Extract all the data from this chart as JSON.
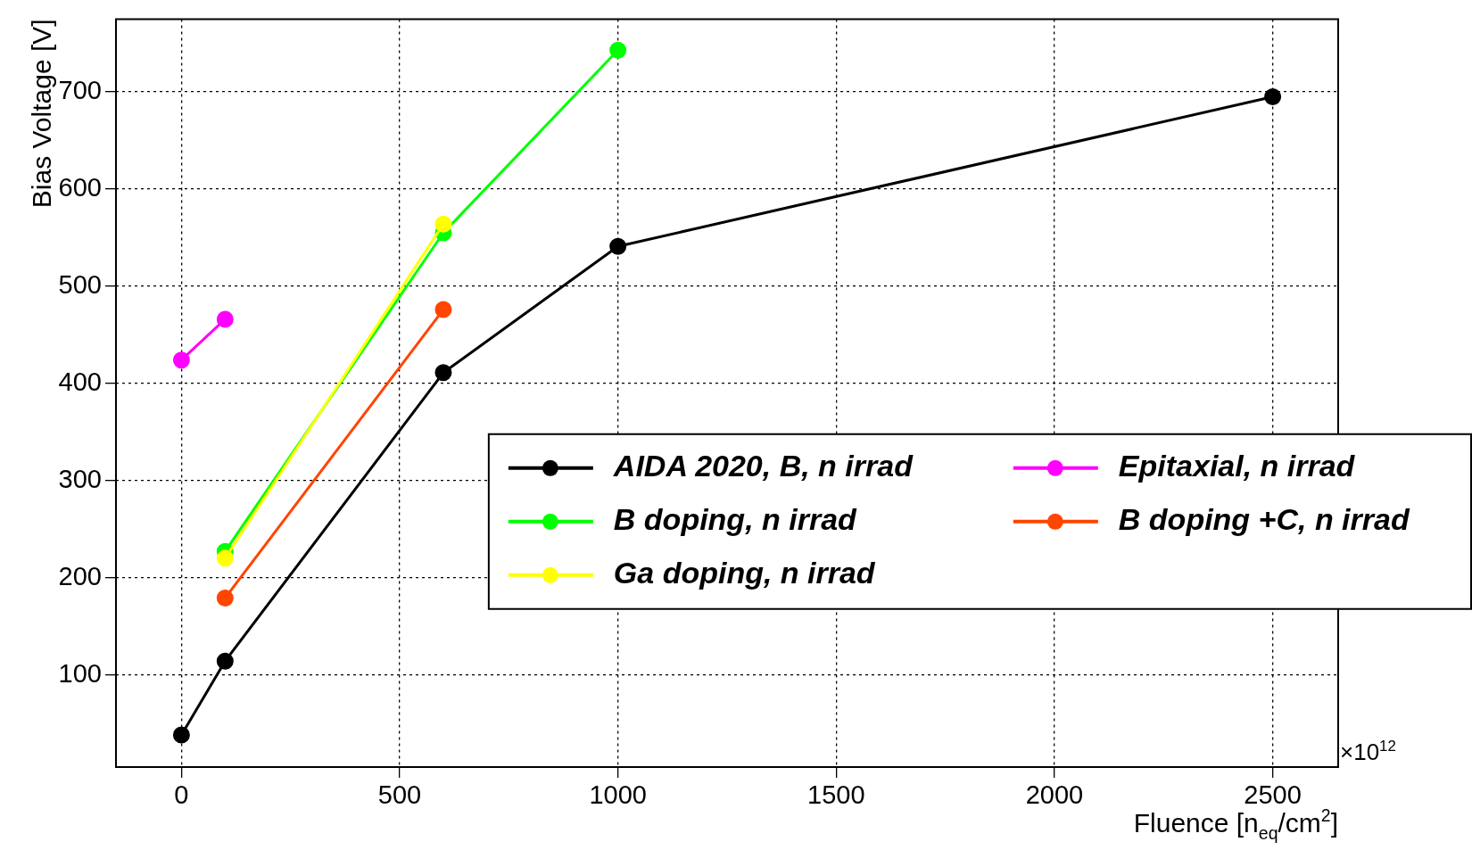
{
  "chart_data": {
    "type": "line",
    "xlabel": "Fluence [n$_{eq}$/cm$^{2}$]",
    "ylabel": "Bias Voltage [V]",
    "xlim": [
      -150,
      2650
    ],
    "xticks": [
      0,
      500,
      1000,
      1500,
      2000,
      2500
    ],
    "ylim": [
      5,
      775
    ],
    "yticks": [
      100,
      200,
      300,
      400,
      500,
      600,
      700
    ],
    "grid": true,
    "legend": "bottom right",
    "marker": "circle",
    "line_style": "solid",
    "annotations": [
      "×10$^{12}$"
    ],
    "series": [
      {
        "name": "AIDA 2020, B, n irrad",
        "color": "#000000",
        "x": [
          0,
          100,
          600,
          1000,
          2500
        ],
        "values": [
          38,
          114,
          411,
          541,
          695
        ]
      },
      {
        "name": "B doping, n irrad",
        "color": "#00ff00",
        "x": [
          100,
          600,
          1000
        ],
        "values": [
          227,
          555,
          743
        ]
      },
      {
        "name": "Ga doping, n irrad",
        "color": "#ffff00",
        "x": [
          100,
          600
        ],
        "values": [
          220,
          564
        ]
      },
      {
        "name": "Epitaxial, n irrad",
        "color": "#ff00ff",
        "x": [
          0,
          100
        ],
        "values": [
          424,
          466
        ]
      },
      {
        "name": "B doping +C, n irrad",
        "color": "#ff4500",
        "x": [
          100,
          600
        ],
        "values": [
          179,
          476
        ]
      }
    ]
  }
}
